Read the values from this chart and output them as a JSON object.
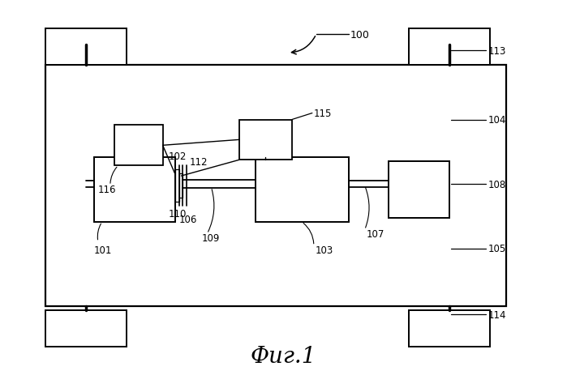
{
  "background_color": "#ffffff",
  "title": "Фиг.1",
  "title_fontsize": 20,
  "fig_width": 6.99,
  "fig_height": 4.64,
  "dpi": 100
}
